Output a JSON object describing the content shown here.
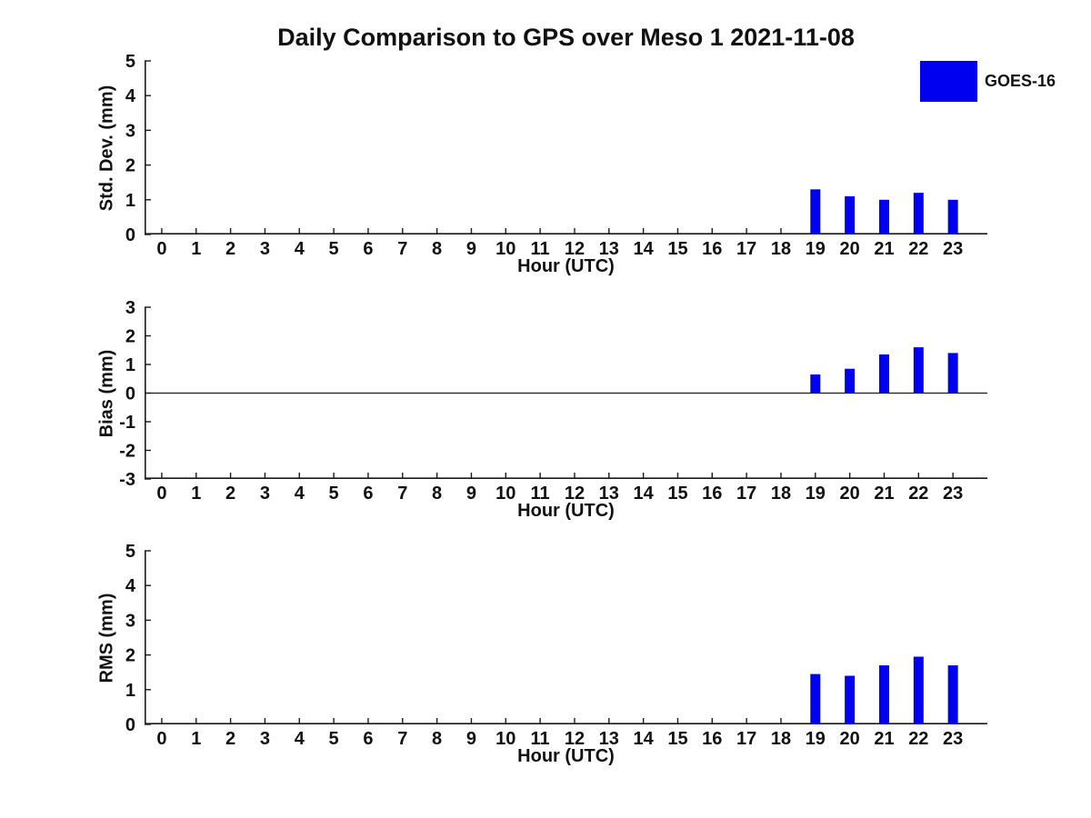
{
  "figure": {
    "title": "Daily Comparison to GPS over Meso 1 2021-11-08",
    "background_color": "#ffffff",
    "axis_color": "#1a1a1a",
    "text_color": "#111111"
  },
  "legend": {
    "label": "GOES-16",
    "color": "#0000f0",
    "position": "top-right"
  },
  "chart_data": [
    {
      "type": "bar",
      "name": "std-dev",
      "ylabel": "Std. Dev. (mm)",
      "xlabel": "Hour (UTC)",
      "xlim": [
        -0.5,
        24
      ],
      "ylim": [
        0,
        5
      ],
      "xticks": [
        0,
        1,
        2,
        3,
        4,
        5,
        6,
        7,
        8,
        9,
        10,
        11,
        12,
        13,
        14,
        15,
        16,
        17,
        18,
        19,
        20,
        21,
        22,
        23
      ],
      "yticks": [
        0,
        1,
        2,
        3,
        4,
        5
      ],
      "grid": false,
      "zero_line": false,
      "series": [
        {
          "name": "GOES-16",
          "color": "#0000f0",
          "x": [
            19,
            20,
            21,
            22,
            23
          ],
          "values": [
            1.3,
            1.1,
            1.0,
            1.2,
            1.0
          ]
        }
      ]
    },
    {
      "type": "bar",
      "name": "bias",
      "ylabel": "Bias (mm)",
      "xlabel": "Hour (UTC)",
      "xlim": [
        -0.5,
        24
      ],
      "ylim": [
        -3,
        3
      ],
      "xticks": [
        0,
        1,
        2,
        3,
        4,
        5,
        6,
        7,
        8,
        9,
        10,
        11,
        12,
        13,
        14,
        15,
        16,
        17,
        18,
        19,
        20,
        21,
        22,
        23
      ],
      "yticks": [
        -3,
        -2,
        -1,
        0,
        1,
        2,
        3
      ],
      "grid": false,
      "zero_line": true,
      "series": [
        {
          "name": "GOES-16",
          "color": "#0000f0",
          "x": [
            19,
            20,
            21,
            22,
            23
          ],
          "values": [
            0.65,
            0.85,
            1.35,
            1.6,
            1.4
          ]
        }
      ]
    },
    {
      "type": "bar",
      "name": "rms",
      "ylabel": "RMS (mm)",
      "xlabel": "Hour (UTC)",
      "xlim": [
        -0.5,
        24
      ],
      "ylim": [
        0,
        5
      ],
      "xticks": [
        0,
        1,
        2,
        3,
        4,
        5,
        6,
        7,
        8,
        9,
        10,
        11,
        12,
        13,
        14,
        15,
        16,
        17,
        18,
        19,
        20,
        21,
        22,
        23
      ],
      "yticks": [
        0,
        1,
        2,
        3,
        4,
        5
      ],
      "grid": false,
      "zero_line": false,
      "series": [
        {
          "name": "GOES-16",
          "color": "#0000f0",
          "x": [
            19,
            20,
            21,
            22,
            23
          ],
          "values": [
            1.45,
            1.4,
            1.7,
            1.95,
            1.7
          ]
        }
      ]
    }
  ]
}
